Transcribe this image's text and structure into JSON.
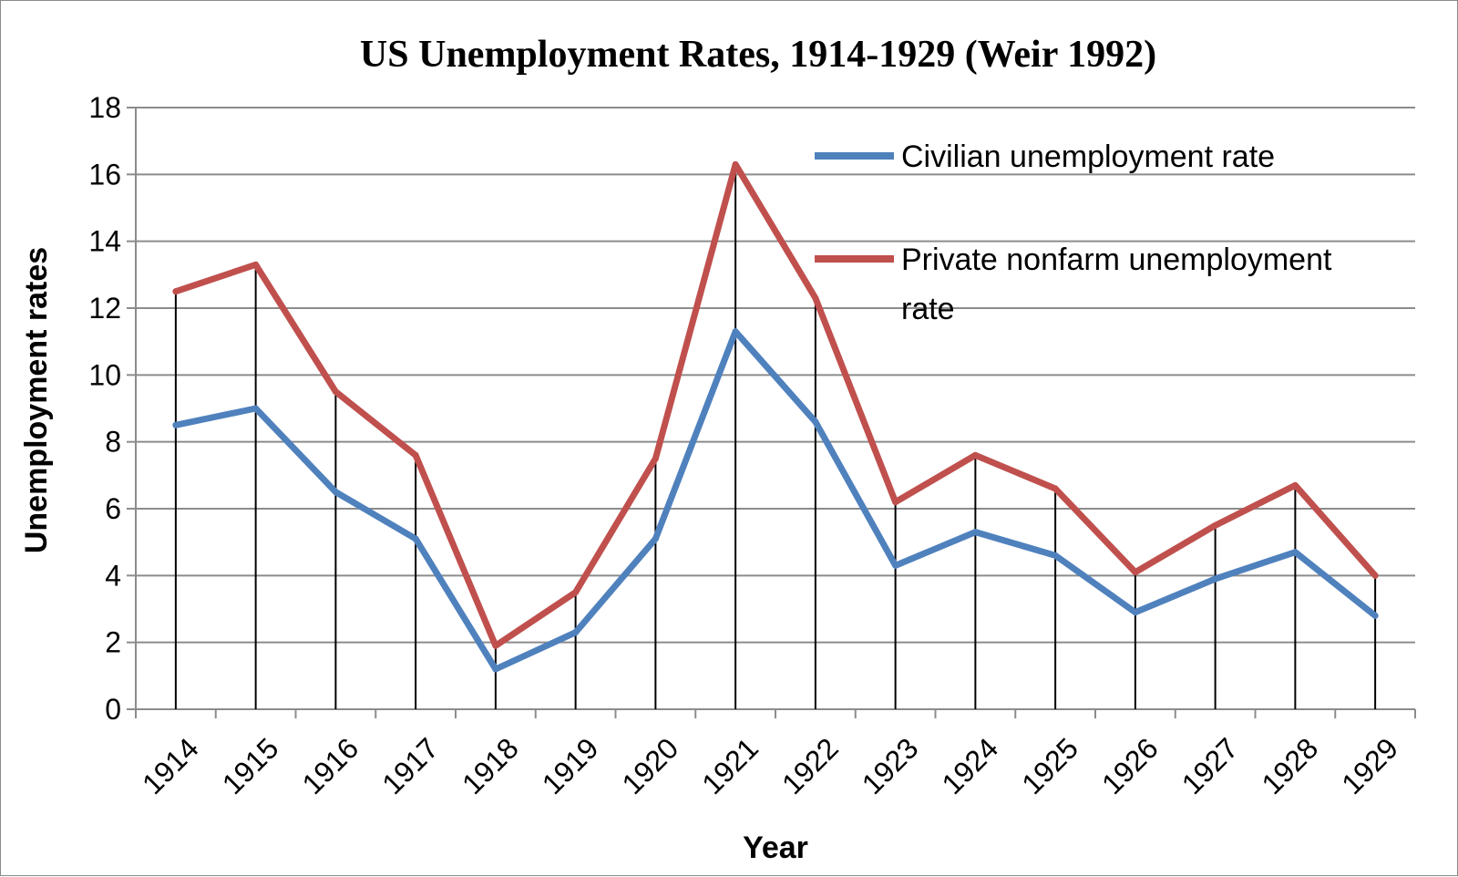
{
  "chart_data": {
    "type": "line",
    "title": "US Unemployment Rates, 1914-1929 (Weir 1992)",
    "xlabel": "Year",
    "ylabel": "Unemployment rates",
    "categories": [
      "1914",
      "1915",
      "1916",
      "1917",
      "1918",
      "1919",
      "1920",
      "1921",
      "1922",
      "1923",
      "1924",
      "1925",
      "1926",
      "1927",
      "1928",
      "1929"
    ],
    "ylim": [
      0,
      18
    ],
    "yticks": [
      0,
      2,
      4,
      6,
      8,
      10,
      12,
      14,
      16,
      18
    ],
    "grid": true,
    "drop_lines": true,
    "legend_position": "top-right",
    "series": [
      {
        "name": "Civilian unemployment rate",
        "color": "#4f81bd",
        "values": [
          8.5,
          9.0,
          6.5,
          5.1,
          1.2,
          2.3,
          5.1,
          11.3,
          8.6,
          4.3,
          5.3,
          4.6,
          2.9,
          3.9,
          4.7,
          2.8
        ]
      },
      {
        "name": "Private nonfarm unemployment rate",
        "legend_lines": [
          "Private nonfarm unemployment",
          "rate"
        ],
        "color": "#c0504d",
        "values": [
          12.5,
          13.3,
          9.5,
          7.6,
          1.9,
          3.5,
          7.5,
          16.3,
          12.3,
          6.2,
          7.6,
          6.6,
          4.1,
          5.5,
          6.7,
          4.0
        ]
      }
    ]
  }
}
